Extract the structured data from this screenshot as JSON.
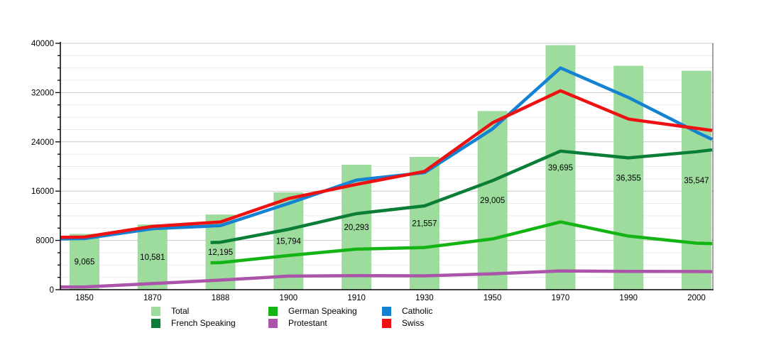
{
  "chart_data": {
    "type": "bar+line",
    "title": "",
    "categories": [
      "1850",
      "1870",
      "1888",
      "1900",
      "1910",
      "1930",
      "1950",
      "1970",
      "1990",
      "2000"
    ],
    "y_axis": {
      "min": 0,
      "max": 40000,
      "major_tick": 8000,
      "minor_tick": 2000,
      "tick_labels": [
        "0",
        "8000",
        "16000",
        "24000",
        "32000",
        "40000"
      ],
      "grid": true
    },
    "bars": {
      "name": "Total",
      "color": "#9edc9e",
      "values": [
        9065,
        10581,
        12195,
        15794,
        20293,
        21557,
        29005,
        39695,
        36355,
        35547
      ],
      "labels": [
        "9,065",
        "10,581",
        "12,195",
        "15,794",
        "20,293",
        "21,557",
        "29,005",
        "39,695",
        "36,355",
        "35,547"
      ]
    },
    "series": [
      {
        "name": "Protestant",
        "color": "#aa55aa",
        "values": [
          450,
          1000,
          1550,
          2200,
          2280,
          2250,
          2580,
          3040,
          2970,
          2950
        ],
        "edge_left": 430,
        "edge_right": 2920
      },
      {
        "name": "German Speaking",
        "color": "#14b414",
        "values": [
          null,
          null,
          4400,
          5550,
          6580,
          6850,
          8240,
          11000,
          8700,
          7550
        ],
        "edge_left": 4350,
        "edge_right": 7480
      },
      {
        "name": "French Speaking",
        "color": "#0a7d37",
        "values": [
          null,
          null,
          7700,
          9800,
          12350,
          13600,
          17700,
          22500,
          21400,
          22400
        ],
        "edge_left": 7650,
        "edge_right": 22700
      },
      {
        "name": "Catholic",
        "color": "#1482d2",
        "values": [
          8300,
          9900,
          10400,
          14000,
          17800,
          19000,
          26100,
          36000,
          31200,
          25600
        ],
        "edge_left": 8250,
        "edge_right": 24400
      },
      {
        "name": "Swiss",
        "color": "#ee1111",
        "values": [
          8550,
          10280,
          11000,
          14800,
          17100,
          19200,
          27100,
          32300,
          27700,
          26200
        ],
        "edge_left": 8500,
        "edge_right": 25850
      }
    ],
    "legend": {
      "position": "bottom",
      "items": [
        {
          "label": "Total",
          "color": "#9edc9e"
        },
        {
          "label": "German Speaking",
          "color": "#14b414"
        },
        {
          "label": "Catholic",
          "color": "#1482d2"
        },
        {
          "label": "French Speaking",
          "color": "#0a7d37"
        },
        {
          "label": "Protestant",
          "color": "#aa55aa"
        },
        {
          "label": "Swiss",
          "color": "#ee1111"
        }
      ]
    },
    "colors": {
      "background": "#ffffff",
      "grid_minor": "#ebebeb",
      "grid_major": "#c9c9c9",
      "axis": "#000000",
      "text": "#000000"
    }
  }
}
